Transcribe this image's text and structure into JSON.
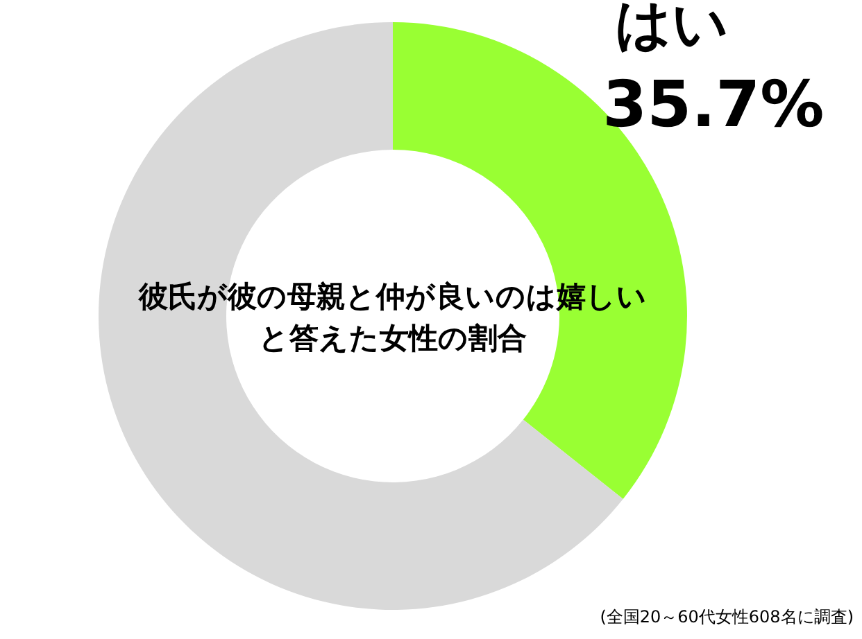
{
  "chart_data": {
    "type": "donut",
    "title": "彼氏が彼の母親と仲が良いのは嬉しいと答えた女性の割合",
    "categories": [
      "はい",
      null
    ],
    "values": [
      35.7,
      64.3
    ],
    "colors": [
      "#99ff33",
      "#d9d9d9"
    ],
    "value_labels": [
      "35.7%",
      null
    ],
    "annotations": [
      "(全国20～60代女性608名に調査)"
    ]
  }
}
